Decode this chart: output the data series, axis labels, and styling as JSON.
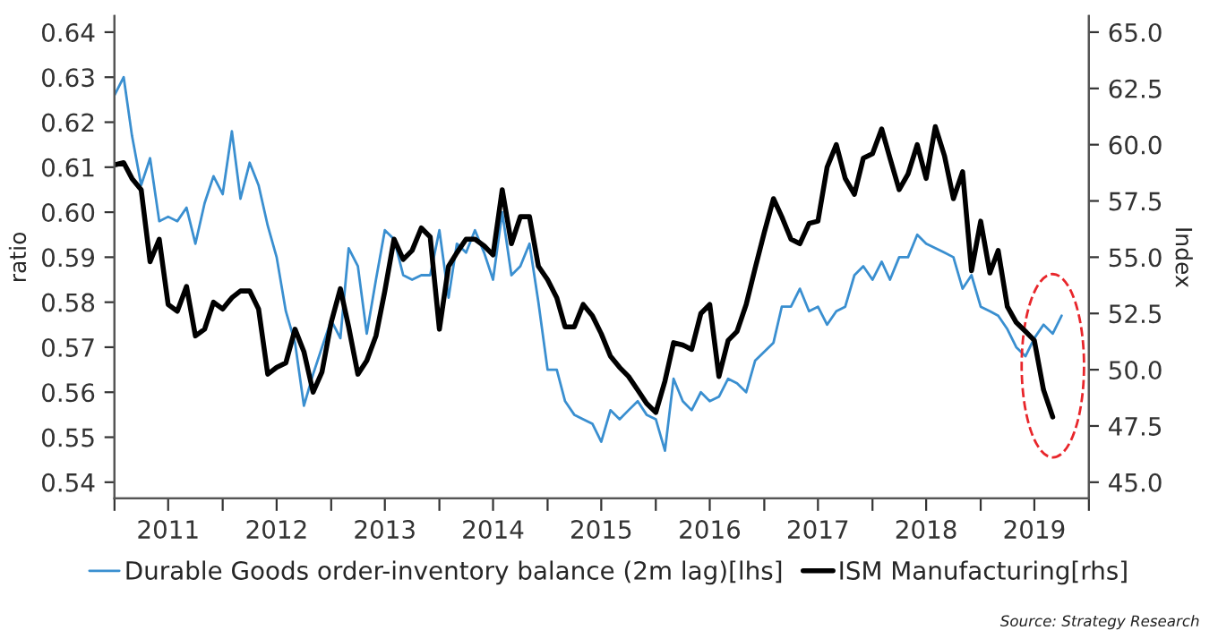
{
  "chart_data": {
    "type": "line",
    "xlabel": null,
    "ylabel": "ratio",
    "y2label": "Index",
    "x": [
      "2011-01",
      "2011-02",
      "2011-03",
      "2011-04",
      "2011-05",
      "2011-06",
      "2011-07",
      "2011-08",
      "2011-09",
      "2011-10",
      "2011-11",
      "2011-12",
      "2012-01",
      "2012-02",
      "2012-03",
      "2012-04",
      "2012-05",
      "2012-06",
      "2012-07",
      "2012-08",
      "2012-09",
      "2012-10",
      "2012-11",
      "2012-12",
      "2013-01",
      "2013-02",
      "2013-03",
      "2013-04",
      "2013-05",
      "2013-06",
      "2013-07",
      "2013-08",
      "2013-09",
      "2013-10",
      "2013-11",
      "2013-12",
      "2014-01",
      "2014-02",
      "2014-03",
      "2014-04",
      "2014-05",
      "2014-06",
      "2014-07",
      "2014-08",
      "2014-09",
      "2014-10",
      "2014-11",
      "2014-12",
      "2015-01",
      "2015-02",
      "2015-03",
      "2015-04",
      "2015-05",
      "2015-06",
      "2015-07",
      "2015-08",
      "2015-09",
      "2015-10",
      "2015-11",
      "2015-12",
      "2016-01",
      "2016-02",
      "2016-03",
      "2016-04",
      "2016-05",
      "2016-06",
      "2016-07",
      "2016-08",
      "2016-09",
      "2016-10",
      "2016-11",
      "2016-12",
      "2017-01",
      "2017-02",
      "2017-03",
      "2017-04",
      "2017-05",
      "2017-06",
      "2017-07",
      "2017-08",
      "2017-09",
      "2017-10",
      "2017-11",
      "2017-12",
      "2018-01",
      "2018-02",
      "2018-03",
      "2018-04",
      "2018-05",
      "2018-06",
      "2018-07",
      "2018-08",
      "2018-09",
      "2018-10",
      "2018-11",
      "2018-12",
      "2019-01",
      "2019-02",
      "2019-03",
      "2019-04",
      "2019-05",
      "2019-06",
      "2019-07",
      "2019-08",
      "2019-09",
      "2019-10"
    ],
    "series": [
      {
        "name": "Durable Goods order-inventory balance (2m lag)[lhs]",
        "color": "#3a8fd0",
        "axis": "y",
        "values": [
          0.626,
          0.63,
          0.617,
          0.606,
          0.612,
          0.598,
          0.599,
          0.598,
          0.601,
          0.593,
          0.602,
          0.608,
          0.604,
          0.618,
          0.603,
          0.611,
          0.606,
          0.597,
          0.59,
          0.578,
          0.571,
          0.557,
          0.564,
          0.57,
          0.576,
          0.572,
          0.592,
          0.588,
          0.573,
          0.585,
          0.596,
          0.594,
          0.586,
          0.585,
          0.586,
          0.586,
          0.596,
          0.581,
          0.593,
          0.591,
          0.596,
          0.591,
          0.585,
          0.6,
          0.586,
          0.588,
          0.593,
          0.58,
          0.565,
          0.565,
          0.558,
          0.555,
          0.554,
          0.553,
          0.549,
          0.556,
          0.554,
          0.556,
          0.558,
          0.555,
          0.554,
          0.547,
          0.563,
          0.558,
          0.556,
          0.56,
          0.558,
          0.559,
          0.563,
          0.562,
          0.56,
          0.567,
          0.569,
          0.571,
          0.579,
          0.579,
          0.583,
          0.578,
          0.579,
          0.575,
          0.578,
          0.579,
          0.586,
          0.588,
          0.585,
          0.589,
          0.585,
          0.59,
          0.59,
          0.595,
          0.593,
          0.592,
          0.591,
          0.59,
          0.583,
          0.586,
          0.579,
          0.578,
          0.577,
          0.574,
          0.57,
          0.568,
          0.572,
          0.575,
          0.573,
          0.577
        ]
      },
      {
        "name": "ISM Manufacturing[rhs]",
        "color": "#000000",
        "axis": "y2",
        "values": [
          59.1,
          59.2,
          58.5,
          58.0,
          54.8,
          55.8,
          52.9,
          52.6,
          53.7,
          51.5,
          51.8,
          53.0,
          52.7,
          53.2,
          53.5,
          53.5,
          52.7,
          49.8,
          50.1,
          50.3,
          51.8,
          50.8,
          49.0,
          49.9,
          52.1,
          53.6,
          51.9,
          49.8,
          50.4,
          51.5,
          53.5,
          55.8,
          54.9,
          55.3,
          56.3,
          55.9,
          51.8,
          54.6,
          55.2,
          55.8,
          55.8,
          55.5,
          55.1,
          58.0,
          55.6,
          56.8,
          56.8,
          54.6,
          54.0,
          53.2,
          51.9,
          51.9,
          52.9,
          52.4,
          51.6,
          50.6,
          50.1,
          49.7,
          49.1,
          48.5,
          48.1,
          49.5,
          51.2,
          51.1,
          50.9,
          52.5,
          52.9,
          49.7,
          51.3,
          51.7,
          52.9,
          54.5,
          56.1,
          57.6,
          56.8,
          55.8,
          55.6,
          56.5,
          56.6,
          59.0,
          60.0,
          58.5,
          57.8,
          59.4,
          59.6,
          60.7,
          59.4,
          58.0,
          58.7,
          60.0,
          58.5,
          60.8,
          59.5,
          57.6,
          58.8,
          54.4,
          56.6,
          54.3,
          55.3,
          52.8,
          52.1,
          51.7,
          51.3,
          49.1,
          47.9,
          null
        ]
      }
    ],
    "xlim": [
      "2011-01",
      "2020-01"
    ],
    "xticks": [
      {
        "value": "2011-01",
        "label": null
      },
      {
        "value": "2011-07",
        "label": "2011"
      },
      {
        "value": "2012-01",
        "label": null
      },
      {
        "value": "2012-07",
        "label": "2012"
      },
      {
        "value": "2013-01",
        "label": null
      },
      {
        "value": "2013-07",
        "label": "2013"
      },
      {
        "value": "2014-01",
        "label": null
      },
      {
        "value": "2014-07",
        "label": "2014"
      },
      {
        "value": "2015-01",
        "label": null
      },
      {
        "value": "2015-07",
        "label": "2015"
      },
      {
        "value": "2016-01",
        "label": null
      },
      {
        "value": "2016-07",
        "label": "2016"
      },
      {
        "value": "2017-01",
        "label": null
      },
      {
        "value": "2017-07",
        "label": "2017"
      },
      {
        "value": "2018-01",
        "label": null
      },
      {
        "value": "2018-07",
        "label": "2018"
      },
      {
        "value": "2019-01",
        "label": null
      },
      {
        "value": "2019-07",
        "label": "2019"
      },
      {
        "value": "2020-01",
        "label": null
      }
    ],
    "ylim": [
      0.5364,
      0.6436
    ],
    "yticks": [
      0.54,
      0.55,
      0.56,
      0.57,
      0.58,
      0.59,
      {
        "value": 0.6,
        "label": "0.60"
      },
      0.61,
      0.62,
      0.63,
      0.64
    ],
    "y2lim": [
      44.28,
      65.72
    ],
    "y2ticks": [
      {
        "value": 45,
        "label": "45.0"
      },
      {
        "value": 47.5,
        "label": "47.5"
      },
      {
        "value": 50,
        "label": "50.0"
      },
      {
        "value": 52.5,
        "label": "52.5"
      },
      {
        "value": 55,
        "label": "55.0"
      },
      {
        "value": 57.5,
        "label": "57.5"
      },
      {
        "value": 60,
        "label": "60.0"
      },
      {
        "value": 62.5,
        "label": "62.5"
      },
      {
        "value": 65,
        "label": "65.0"
      }
    ],
    "grid": false,
    "legend": "bottom",
    "marker": "none",
    "line_style": "solid",
    "annotations": [
      "Source: Strategy Research"
    ]
  }
}
